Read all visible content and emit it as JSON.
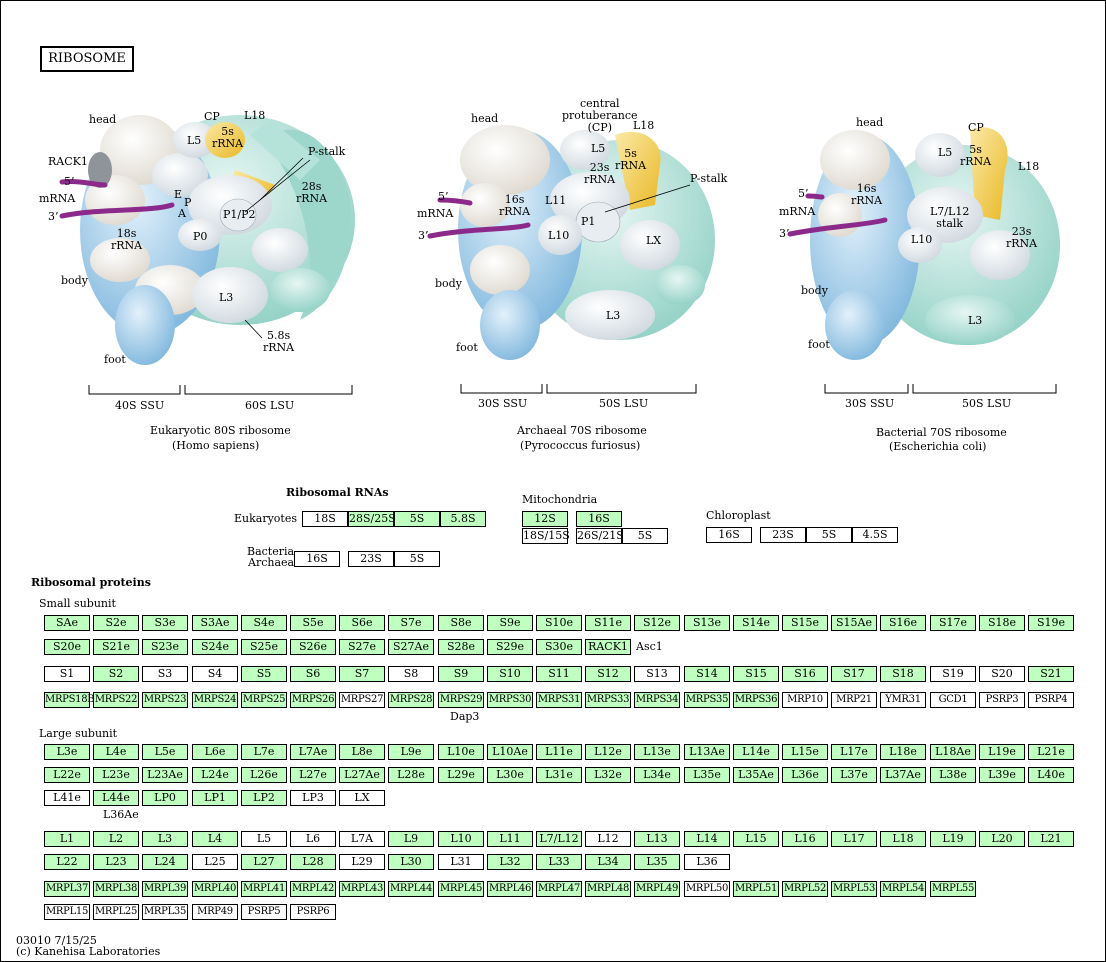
{
  "title": "RIBOSOME",
  "footer": {
    "code": "03010 7/15/25",
    "copyright": "(c) Kanehisa Laboratories"
  },
  "colors": {
    "protein_found": "#bfffbf",
    "mrna": "#8b2a8b",
    "rrna_5s": "#f3c53a",
    "lsu_teal": "#a8ddd4",
    "ssu_blue": "#8ec0e0"
  },
  "diagrams": [
    {
      "id": "euk",
      "name": "Eukaryotic 80S ribosome",
      "species": "(Homo sapiens)",
      "ssu": "40S SSU",
      "lsu": "60S LSU",
      "labels": {
        "head": "head",
        "cp": "CP",
        "l18": "L18",
        "l5": "L5",
        "rrna5s": "5s\nrRNA",
        "pstalk": "P-stalk",
        "rack1": "RACK1",
        "p5": "5’",
        "mrna": "mRNA",
        "p3": "3’",
        "e": "E",
        "p": "P",
        "a": "A",
        "p1p2": "P1/P2",
        "rrna28s": "28s\nrRNA",
        "rrna18s": "18s\nrRNA",
        "p0": "P0",
        "body": "body",
        "l3": "L3",
        "rrna58s": "5.8s\nrRNA",
        "foot": "foot"
      }
    },
    {
      "id": "arc",
      "name": "Archaeal 70S ribosome",
      "species": "(Pyrococcus furiosus)",
      "ssu": "30S SSU",
      "lsu": "50S LSU",
      "labels": {
        "head": "head",
        "cp": "central\nprotuberance\n(CP)",
        "l18": "L18",
        "l5": "L5",
        "rrna5s": "5s\nrRNA",
        "rrna23s": "23s\nrRNA",
        "pstalk": "P-stalk",
        "p5": "5’",
        "mrna": "mRNA",
        "p3": "3’",
        "rrna16s": "16s\nrRNA",
        "l11": "L11",
        "p1": "P1",
        "l10": "L10",
        "lx": "LX",
        "body": "body",
        "l3": "L3",
        "foot": "foot"
      }
    },
    {
      "id": "bac",
      "name": "Bacterial 70S ribosome",
      "species": "(Escherichia coli)",
      "ssu": "30S SSU",
      "lsu": "50S LSU",
      "labels": {
        "head": "head",
        "cp": "CP",
        "l5": "L5",
        "rrna5s": "5s\nrRNA",
        "l18": "L18",
        "p5": "5’",
        "mrna": "mRNA",
        "p3": "3’",
        "rrna16s": "16s\nrRNA",
        "stalk": "L7/L12\nstalk",
        "l10": "L10",
        "rrna23s": "23s\nrRNA",
        "body": "body",
        "l3": "L3",
        "foot": "foot"
      }
    }
  ],
  "rrna": {
    "heading": "Ribosomal RNAs",
    "eukaryotes_label": "Eukaryotes",
    "bacteria_label": "Bacteria\nArchaea",
    "mito_label": "Mitochondria",
    "chloro_label": "Chloroplast",
    "euk": [
      {
        "t": "18S",
        "g": false
      },
      {
        "t": "28S/25S",
        "g": true
      },
      {
        "t": "5S",
        "g": true
      },
      {
        "t": "5.8S",
        "g": true
      }
    ],
    "bac": [
      {
        "t": "16S",
        "g": false
      },
      {
        "t": "23S",
        "g": false
      },
      {
        "t": "5S",
        "g": false
      }
    ],
    "mito_top": [
      {
        "t": "12S",
        "g": true
      },
      {
        "t": "16S",
        "g": true
      }
    ],
    "mito_bottom": [
      {
        "t": "18S/15S",
        "g": false
      },
      {
        "t": "26S/21S",
        "g": false
      },
      {
        "t": "5S",
        "g": false
      }
    ],
    "chloro": [
      {
        "t": "16S",
        "g": false
      },
      {
        "t": "23S",
        "g": false
      },
      {
        "t": "5S",
        "g": false
      },
      {
        "t": "4.5S",
        "g": false
      }
    ]
  },
  "proteins": {
    "heading": "Ribosomal proteins",
    "small_label": "Small subunit",
    "large_label": "Large subunit",
    "notes": {
      "asc1": "Asc1",
      "dap3": "Dap3",
      "l36ae": "L36Ae"
    },
    "small_rows": [
      [
        {
          "t": "SAe",
          "g": true
        },
        {
          "t": "S2e",
          "g": true
        },
        {
          "t": "S3e",
          "g": true
        },
        {
          "t": "S3Ae",
          "g": true
        },
        {
          "t": "S4e",
          "g": true
        },
        {
          "t": "S5e",
          "g": true
        },
        {
          "t": "S6e",
          "g": true
        },
        {
          "t": "S7e",
          "g": true
        },
        {
          "t": "S8e",
          "g": true
        },
        {
          "t": "S9e",
          "g": true
        },
        {
          "t": "S10e",
          "g": true
        },
        {
          "t": "S11e",
          "g": true
        },
        {
          "t": "S12e",
          "g": true
        },
        {
          "t": "S13e",
          "g": true
        },
        {
          "t": "S14e",
          "g": true
        },
        {
          "t": "S15e",
          "g": true
        },
        {
          "t": "S15Ae",
          "g": true
        },
        {
          "t": "S16e",
          "g": true
        },
        {
          "t": "S17e",
          "g": true
        },
        {
          "t": "S18e",
          "g": true
        },
        {
          "t": "S19e",
          "g": true
        }
      ],
      [
        {
          "t": "S20e",
          "g": true
        },
        {
          "t": "S21e",
          "g": true
        },
        {
          "t": "S23e",
          "g": true
        },
        {
          "t": "S24e",
          "g": true
        },
        {
          "t": "S25e",
          "g": true
        },
        {
          "t": "S26e",
          "g": true
        },
        {
          "t": "S27e",
          "g": true
        },
        {
          "t": "S27Ae",
          "g": true
        },
        {
          "t": "S28e",
          "g": true
        },
        {
          "t": "S29e",
          "g": true
        },
        {
          "t": "S30e",
          "g": true
        },
        {
          "t": "RACK1",
          "g": true
        }
      ],
      [
        {
          "t": "S1",
          "g": false
        },
        {
          "t": "S2",
          "g": true
        },
        {
          "t": "S3",
          "g": false
        },
        {
          "t": "S4",
          "g": false
        },
        {
          "t": "S5",
          "g": true
        },
        {
          "t": "S6",
          "g": true
        },
        {
          "t": "S7",
          "g": true
        },
        {
          "t": "S8",
          "g": false
        },
        {
          "t": "S9",
          "g": true
        },
        {
          "t": "S10",
          "g": true
        },
        {
          "t": "S11",
          "g": true
        },
        {
          "t": "S12",
          "g": true
        },
        {
          "t": "S13",
          "g": false
        },
        {
          "t": "S14",
          "g": true
        },
        {
          "t": "S15",
          "g": true
        },
        {
          "t": "S16",
          "g": true
        },
        {
          "t": "S17",
          "g": true
        },
        {
          "t": "S18",
          "g": true
        },
        {
          "t": "S19",
          "g": false
        },
        {
          "t": "S20",
          "g": false
        },
        {
          "t": "S21",
          "g": true
        }
      ],
      [
        {
          "t": "MRPS18B",
          "g": true
        },
        {
          "t": "MRPS22",
          "g": true
        },
        {
          "t": "MRPS23",
          "g": true
        },
        {
          "t": "MRPS24",
          "g": true
        },
        {
          "t": "MRPS25",
          "g": true
        },
        {
          "t": "MRPS26",
          "g": true
        },
        {
          "t": "MRPS27",
          "g": false
        },
        {
          "t": "MRPS28",
          "g": true
        },
        {
          "t": "MRPS29",
          "g": true
        },
        {
          "t": "MRPS30",
          "g": true
        },
        {
          "t": "MRPS31",
          "g": true
        },
        {
          "t": "MRPS33",
          "g": true
        },
        {
          "t": "MRPS34",
          "g": true
        },
        {
          "t": "MRPS35",
          "g": true
        },
        {
          "t": "MRPS36",
          "g": true
        },
        {
          "t": "MRP10",
          "g": false
        },
        {
          "t": "MRP21",
          "g": false
        },
        {
          "t": "YMR31",
          "g": false
        },
        {
          "t": "GCD1",
          "g": false
        },
        {
          "t": "PSRP3",
          "g": false
        },
        {
          "t": "PSRP4",
          "g": false
        }
      ]
    ],
    "large_rows": [
      [
        {
          "t": "L3e",
          "g": true
        },
        {
          "t": "L4e",
          "g": true
        },
        {
          "t": "L5e",
          "g": true
        },
        {
          "t": "L6e",
          "g": true
        },
        {
          "t": "L7e",
          "g": true
        },
        {
          "t": "L7Ae",
          "g": true
        },
        {
          "t": "L8e",
          "g": true
        },
        {
          "t": "L9e",
          "g": true
        },
        {
          "t": "L10e",
          "g": true
        },
        {
          "t": "L10Ae",
          "g": true
        },
        {
          "t": "L11e",
          "g": true
        },
        {
          "t": "L12e",
          "g": true
        },
        {
          "t": "L13e",
          "g": true
        },
        {
          "t": "L13Ae",
          "g": true
        },
        {
          "t": "L14e",
          "g": true
        },
        {
          "t": "L15e",
          "g": true
        },
        {
          "t": "L17e",
          "g": true
        },
        {
          "t": "L18e",
          "g": true
        },
        {
          "t": "L18Ae",
          "g": true
        },
        {
          "t": "L19e",
          "g": true
        },
        {
          "t": "L21e",
          "g": true
        }
      ],
      [
        {
          "t": "L22e",
          "g": true
        },
        {
          "t": "L23e",
          "g": true
        },
        {
          "t": "L23Ae",
          "g": true
        },
        {
          "t": "L24e",
          "g": true
        },
        {
          "t": "L26e",
          "g": true
        },
        {
          "t": "L27e",
          "g": true
        },
        {
          "t": "L27Ae",
          "g": true
        },
        {
          "t": "L28e",
          "g": true
        },
        {
          "t": "L29e",
          "g": true
        },
        {
          "t": "L30e",
          "g": true
        },
        {
          "t": "L31e",
          "g": true
        },
        {
          "t": "L32e",
          "g": true
        },
        {
          "t": "L34e",
          "g": true
        },
        {
          "t": "L35e",
          "g": true
        },
        {
          "t": "L35Ae",
          "g": true
        },
        {
          "t": "L36e",
          "g": true
        },
        {
          "t": "L37e",
          "g": true
        },
        {
          "t": "L37Ae",
          "g": true
        },
        {
          "t": "L38e",
          "g": true
        },
        {
          "t": "L39e",
          "g": true
        },
        {
          "t": "L40e",
          "g": true
        }
      ],
      [
        {
          "t": "L41e",
          "g": false
        },
        {
          "t": "L44e",
          "g": true
        },
        {
          "t": "LP0",
          "g": true
        },
        {
          "t": "LP1",
          "g": true
        },
        {
          "t": "LP2",
          "g": true
        },
        {
          "t": "LP3",
          "g": false
        },
        {
          "t": "LX",
          "g": false
        }
      ],
      [
        {
          "t": "L1",
          "g": true
        },
        {
          "t": "L2",
          "g": true
        },
        {
          "t": "L3",
          "g": true
        },
        {
          "t": "L4",
          "g": true
        },
        {
          "t": "L5",
          "g": false
        },
        {
          "t": "L6",
          "g": false
        },
        {
          "t": "L7A",
          "g": false
        },
        {
          "t": "L9",
          "g": true
        },
        {
          "t": "L10",
          "g": true
        },
        {
          "t": "L11",
          "g": true
        },
        {
          "t": "L7/L12",
          "g": true
        },
        {
          "t": "L12",
          "g": false
        },
        {
          "t": "L13",
          "g": true
        },
        {
          "t": "L14",
          "g": true
        },
        {
          "t": "L15",
          "g": true
        },
        {
          "t": "L16",
          "g": true
        },
        {
          "t": "L17",
          "g": true
        },
        {
          "t": "L18",
          "g": true
        },
        {
          "t": "L19",
          "g": true
        },
        {
          "t": "L20",
          "g": true
        },
        {
          "t": "L21",
          "g": true
        }
      ],
      [
        {
          "t": "L22",
          "g": true
        },
        {
          "t": "L23",
          "g": true
        },
        {
          "t": "L24",
          "g": true
        },
        {
          "t": "L25",
          "g": false
        },
        {
          "t": "L27",
          "g": true
        },
        {
          "t": "L28",
          "g": true
        },
        {
          "t": "L29",
          "g": false
        },
        {
          "t": "L30",
          "g": true
        },
        {
          "t": "L31",
          "g": false
        },
        {
          "t": "L32",
          "g": true
        },
        {
          "t": "L33",
          "g": true
        },
        {
          "t": "L34",
          "g": true
        },
        {
          "t": "L35",
          "g": true
        },
        {
          "t": "L36",
          "g": false
        }
      ],
      [
        {
          "t": "MRPL37",
          "g": true
        },
        {
          "t": "MRPL38",
          "g": true
        },
        {
          "t": "MRPL39",
          "g": true
        },
        {
          "t": "MRPL40",
          "g": true
        },
        {
          "t": "MRPL41",
          "g": true
        },
        {
          "t": "MRPL42",
          "g": true
        },
        {
          "t": "MRPL43",
          "g": true
        },
        {
          "t": "MRPL44",
          "g": true
        },
        {
          "t": "MRPL45",
          "g": true
        },
        {
          "t": "MRPL46",
          "g": true
        },
        {
          "t": "MRPL47",
          "g": true
        },
        {
          "t": "MRPL48",
          "g": true
        },
        {
          "t": "MRPL49",
          "g": true
        },
        {
          "t": "MRPL50",
          "g": false
        },
        {
          "t": "MRPL51",
          "g": true
        },
        {
          "t": "MRPL52",
          "g": true
        },
        {
          "t": "MRPL53",
          "g": true
        },
        {
          "t": "MRPL54",
          "g": true
        },
        {
          "t": "MRPL55",
          "g": true
        }
      ],
      [
        {
          "t": "MRPL15",
          "g": false
        },
        {
          "t": "MRPL25",
          "g": false
        },
        {
          "t": "MRPL35",
          "g": false
        },
        {
          "t": "MRP49",
          "g": false
        },
        {
          "t": "PSRP5",
          "g": false
        },
        {
          "t": "PSRP6",
          "g": false
        }
      ]
    ]
  }
}
